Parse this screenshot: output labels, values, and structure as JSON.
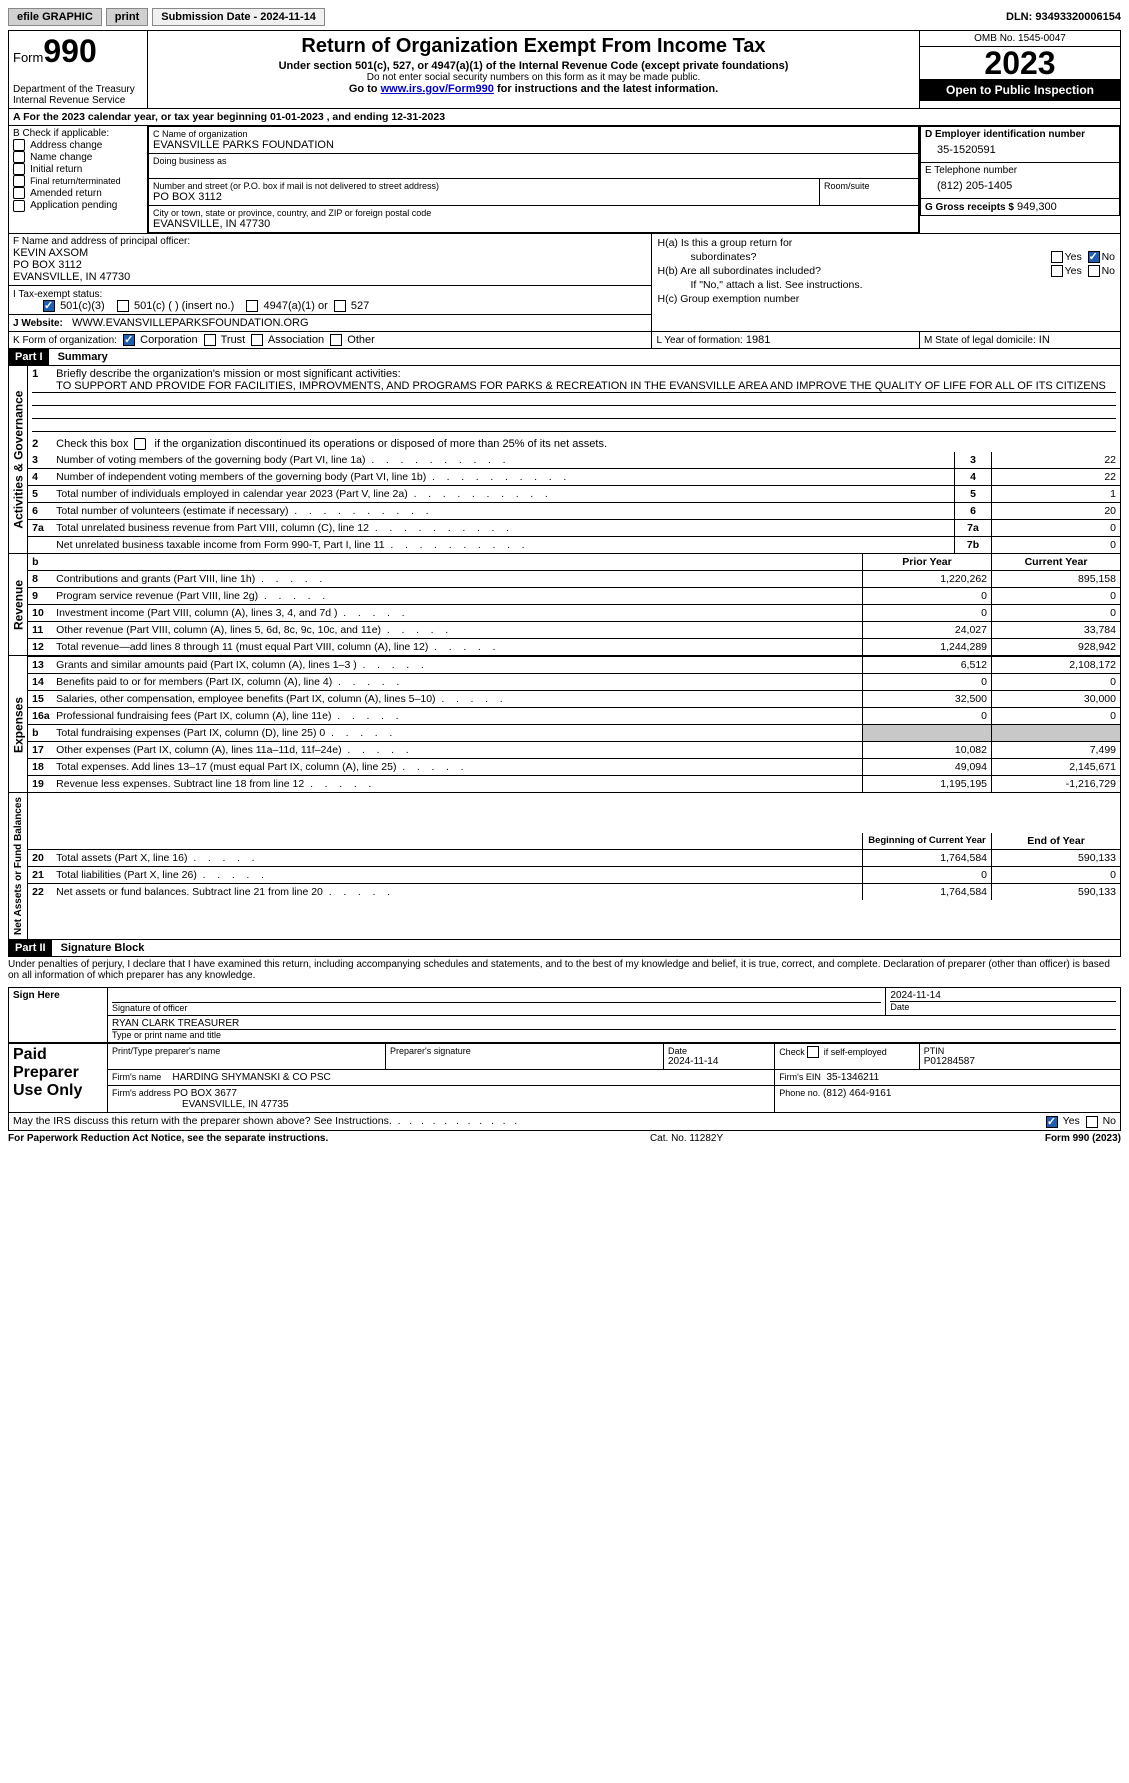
{
  "topbar": {
    "efile": "efile GRAPHIC",
    "print": "print",
    "submission": "Submission Date - 2024-11-14",
    "dln": "DLN: 93493320006154"
  },
  "header": {
    "form_word": "Form",
    "form_num": "990",
    "title": "Return of Organization Exempt From Income Tax",
    "subtitle1": "Under section 501(c), 527, or 4947(a)(1) of the Internal Revenue Code (except private foundations)",
    "subtitle2": "Do not enter social security numbers on this form as it may be made public.",
    "goto_pre": "Go to ",
    "goto_link": "www.irs.gov/Form990",
    "goto_post": " for instructions and the latest information.",
    "dept": "Department of the Treasury\nInternal Revenue Service",
    "omb": "OMB No. 1545-0047",
    "year": "2023",
    "open": "Open to Public Inspection"
  },
  "row_a": "A  For the 2023 calendar year, or tax year beginning 01-01-2023   , and ending 12-31-2023",
  "section_b": {
    "label": "B Check if applicable:",
    "items": [
      "Address change",
      "Name change",
      "Initial return",
      "Final return/terminated",
      "Amended return",
      "Application pending"
    ]
  },
  "section_c": {
    "name_lbl": "C Name of organization",
    "name_val": "EVANSVILLE PARKS FOUNDATION",
    "dba_lbl": "Doing business as",
    "addr_lbl": "Number and street (or P.O. box if mail is not delivered to street address)",
    "addr_val": "PO BOX 3112",
    "room_lbl": "Room/suite",
    "city_lbl": "City or town, state or province, country, and ZIP or foreign postal code",
    "city_val": "EVANSVILLE, IN  47730"
  },
  "section_d": {
    "ein_lbl": "D Employer identification number",
    "ein_val": "35-1520591",
    "phone_lbl": "E Telephone number",
    "phone_val": "(812) 205-1405",
    "gross_lbl": "G Gross receipts $",
    "gross_val": "949,300"
  },
  "section_f": {
    "lbl": "F Name and address of principal officer:",
    "name": "KEVIN AXSOM",
    "addr1": "PO BOX 3112",
    "addr2": "EVANSVILLE, IN  47730"
  },
  "section_h": {
    "ha": "H(a)  Is this a group return for",
    "ha2": "subordinates?",
    "hb": "H(b)  Are all subordinates included?",
    "hb2": "If \"No,\" attach a list. See instructions.",
    "hc": "H(c)  Group exemption number",
    "yes": "Yes",
    "no": "No"
  },
  "section_i": {
    "lbl": "I     Tax-exempt status:",
    "opt1": "501(c)(3)",
    "opt2": "501(c) (  ) (insert no.)",
    "opt3": "4947(a)(1) or",
    "opt4": "527"
  },
  "section_j": {
    "lbl": "J     Website:",
    "val": "WWW.EVANSVILLEPARKSFOUNDATION.ORG"
  },
  "section_k": {
    "lbl": "K Form of organization:",
    "opts": [
      "Corporation",
      "Trust",
      "Association",
      "Other"
    ]
  },
  "section_l": {
    "lbl": "L Year of formation:",
    "val": "1981"
  },
  "section_m": {
    "lbl": "M State of legal domicile:",
    "val": "IN"
  },
  "part1": {
    "hdr": "Part I",
    "title": "Summary",
    "side_ag": "Activities & Governance",
    "side_rev": "Revenue",
    "side_exp": "Expenses",
    "side_na": "Net Assets or Fund Balances",
    "line1_lbl": "Briefly describe the organization's mission or most significant activities:",
    "line1_val": "TO SUPPORT AND PROVIDE FOR FACILITIES, IMPROVMENTS, AND PROGRAMS FOR PARKS & RECREATION IN THE EVANSVILLE AREA AND IMPROVE THE QUALITY OF LIFE FOR ALL OF ITS CITIZENS",
    "line2": "Check this box       if the organization discontinued its operations or disposed of more than 25% of its net assets.",
    "lines_ag": [
      {
        "n": "3",
        "t": "Number of voting members of the governing body (Part VI, line 1a)",
        "box": "3",
        "v": "22"
      },
      {
        "n": "4",
        "t": "Number of independent voting members of the governing body (Part VI, line 1b)",
        "box": "4",
        "v": "22"
      },
      {
        "n": "5",
        "t": "Total number of individuals employed in calendar year 2023 (Part V, line 2a)",
        "box": "5",
        "v": "1"
      },
      {
        "n": "6",
        "t": "Total number of volunteers (estimate if necessary)",
        "box": "6",
        "v": "20"
      },
      {
        "n": "7a",
        "t": "Total unrelated business revenue from Part VIII, column (C), line 12",
        "box": "7a",
        "v": "0"
      },
      {
        "n": "",
        "t": "Net unrelated business taxable income from Form 990-T, Part I, line 11",
        "box": "7b",
        "v": "0"
      }
    ],
    "prior_hdr": "Prior Year",
    "current_hdr": "Current Year",
    "lines_rev": [
      {
        "n": "8",
        "t": "Contributions and grants (Part VIII, line 1h)",
        "p": "1,220,262",
        "c": "895,158"
      },
      {
        "n": "9",
        "t": "Program service revenue (Part VIII, line 2g)",
        "p": "0",
        "c": "0"
      },
      {
        "n": "10",
        "t": "Investment income (Part VIII, column (A), lines 3, 4, and 7d )",
        "p": "0",
        "c": "0"
      },
      {
        "n": "11",
        "t": "Other revenue (Part VIII, column (A), lines 5, 6d, 8c, 9c, 10c, and 11e)",
        "p": "24,027",
        "c": "33,784"
      },
      {
        "n": "12",
        "t": "Total revenue—add lines 8 through 11 (must equal Part VIII, column (A), line 12)",
        "p": "1,244,289",
        "c": "928,942"
      }
    ],
    "lines_exp": [
      {
        "n": "13",
        "t": "Grants and similar amounts paid (Part IX, column (A), lines 1–3 )",
        "p": "6,512",
        "c": "2,108,172"
      },
      {
        "n": "14",
        "t": "Benefits paid to or for members (Part IX, column (A), line 4)",
        "p": "0",
        "c": "0"
      },
      {
        "n": "15",
        "t": "Salaries, other compensation, employee benefits (Part IX, column (A), lines 5–10)",
        "p": "32,500",
        "c": "30,000"
      },
      {
        "n": "16a",
        "t": "Professional fundraising fees (Part IX, column (A), line 11e)",
        "p": "0",
        "c": "0"
      },
      {
        "n": "b",
        "t": "Total fundraising expenses (Part IX, column (D), line 25) 0",
        "p": "GREY",
        "c": "GREY"
      },
      {
        "n": "17",
        "t": "Other expenses (Part IX, column (A), lines 11a–11d, 11f–24e)",
        "p": "10,082",
        "c": "7,499"
      },
      {
        "n": "18",
        "t": "Total expenses. Add lines 13–17 (must equal Part IX, column (A), line 25)",
        "p": "49,094",
        "c": "2,145,671"
      },
      {
        "n": "19",
        "t": "Revenue less expenses. Subtract line 18 from line 12",
        "p": "1,195,195",
        "c": "-1,216,729"
      }
    ],
    "begin_hdr": "Beginning of Current Year",
    "end_hdr": "End of Year",
    "lines_na": [
      {
        "n": "20",
        "t": "Total assets (Part X, line 16)",
        "p": "1,764,584",
        "c": "590,133"
      },
      {
        "n": "21",
        "t": "Total liabilities (Part X, line 26)",
        "p": "0",
        "c": "0"
      },
      {
        "n": "22",
        "t": "Net assets or fund balances. Subtract line 21 from line 20",
        "p": "1,764,584",
        "c": "590,133"
      }
    ]
  },
  "part2": {
    "hdr": "Part II",
    "title": "Signature Block",
    "decl": "Under penalties of perjury, I declare that I have examined this return, including accompanying schedules and statements, and to the best of my knowledge and belief, it is true, correct, and complete. Declaration of preparer (other than officer) is based on all information of which preparer has any knowledge."
  },
  "sign_here": {
    "lbl": "Sign Here",
    "sig_lbl": "Signature of officer",
    "date_lbl": "Date",
    "date_val": "2024-11-14",
    "name": "RYAN CLARK  TREASURER",
    "type_lbl": "Type or print name and title"
  },
  "paid": {
    "lbl": "Paid Preparer Use Only",
    "print_lbl": "Print/Type preparer's name",
    "psig_lbl": "Preparer's signature",
    "pdate_lbl": "Date",
    "pdate_val": "2024-11-14",
    "check_lbl": "Check       if self-employed",
    "ptin_lbl": "PTIN",
    "ptin_val": "P01284587",
    "firm_name_lbl": "Firm's name",
    "firm_name_val": "HARDING SHYMANSKI & CO PSC",
    "firm_ein_lbl": "Firm's EIN",
    "firm_ein_val": "35-1346211",
    "firm_addr_lbl": "Firm's address",
    "firm_addr_val1": "PO BOX 3677",
    "firm_addr_val2": "EVANSVILLE, IN  47735",
    "phone_lbl": "Phone no.",
    "phone_val": "(812) 464-9161"
  },
  "discuss": "May the IRS discuss this return with the preparer shown above? See Instructions.",
  "footer": {
    "left": "For Paperwork Reduction Act Notice, see the separate instructions.",
    "center": "Cat. No. 11282Y",
    "right": "Form 990 (2023)"
  }
}
